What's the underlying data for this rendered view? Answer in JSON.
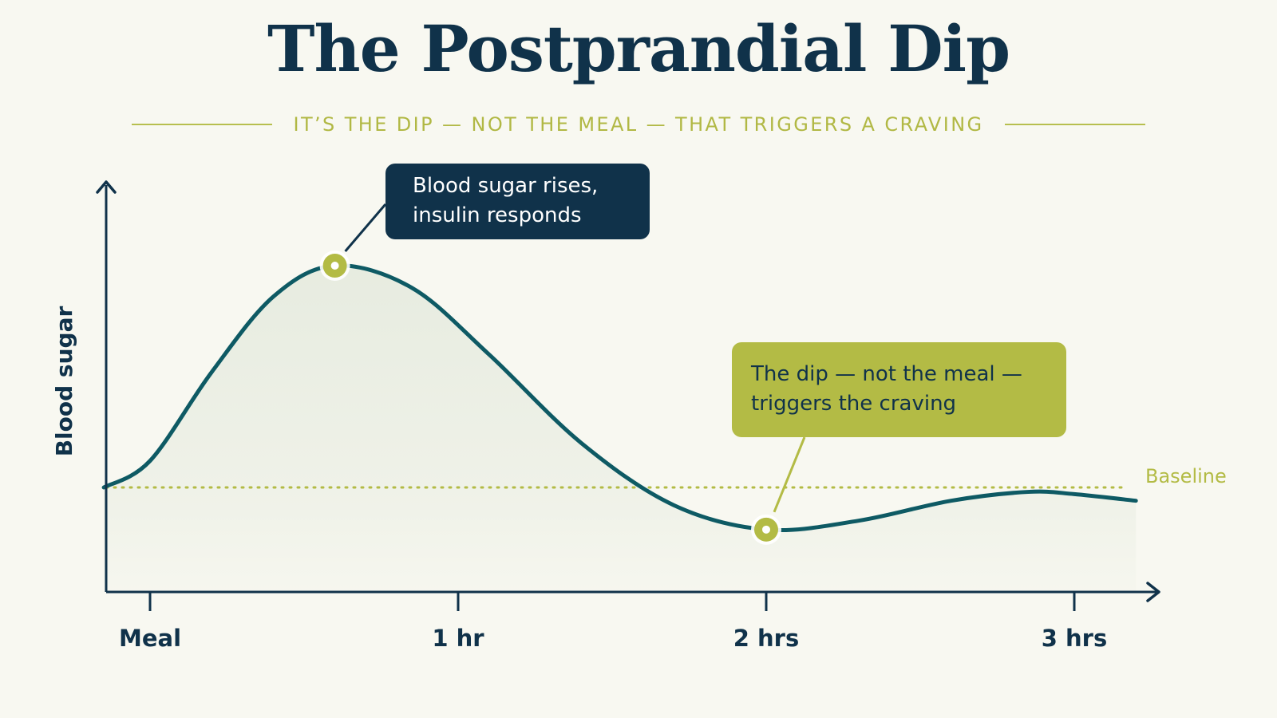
{
  "header": {
    "title": "The Postprandial Dip",
    "subtitle": "IT’S THE DIP — NOT THE MEAL — THAT TRIGGERS A CRAVING"
  },
  "colors": {
    "navy": "#10324a",
    "curve": "#0e5a64",
    "olive": "#b3bb45",
    "fill": "#e6ebdf",
    "background": "#f8f8f1"
  },
  "chart_data": {
    "type": "area",
    "ylabel": "Blood sugar",
    "xlabel": "",
    "x_ticks": [
      {
        "x": 0,
        "label": "Meal"
      },
      {
        "x": 1,
        "label": "1 hr"
      },
      {
        "x": 2,
        "label": "2 hrs"
      },
      {
        "x": 3,
        "label": "3 hrs"
      }
    ],
    "xlim": [
      -0.15,
      3.2
    ],
    "ylim": [
      -0.8,
      1.0
    ],
    "baseline": {
      "value": 0,
      "label": "Baseline"
    },
    "series": [
      {
        "points": [
          [
            -0.15,
            0.0
          ],
          [
            0.0,
            0.12
          ],
          [
            0.2,
            0.52
          ],
          [
            0.4,
            0.86
          ],
          [
            0.6,
            1.0
          ],
          [
            0.85,
            0.9
          ],
          [
            1.1,
            0.6
          ],
          [
            1.4,
            0.2
          ],
          [
            1.7,
            -0.08
          ],
          [
            2.0,
            -0.19
          ],
          [
            2.3,
            -0.15
          ],
          [
            2.6,
            -0.06
          ],
          [
            2.85,
            -0.02
          ],
          [
            3.0,
            -0.03
          ],
          [
            3.2,
            -0.06
          ]
        ]
      }
    ],
    "annotations": [
      {
        "x": 0.6,
        "y": 1.0,
        "lines": [
          "Blood sugar rises,",
          "insulin responds"
        ],
        "style": "dark"
      },
      {
        "x": 2.0,
        "y": -0.19,
        "lines": [
          "The dip — not the meal —",
          "triggers the craving"
        ],
        "style": "light"
      }
    ]
  }
}
